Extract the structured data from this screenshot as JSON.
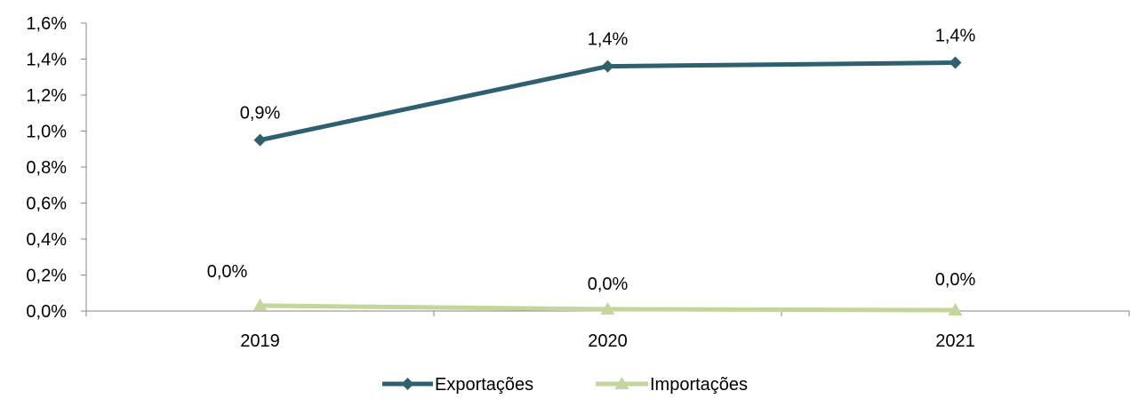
{
  "chart_data": {
    "type": "line",
    "categories": [
      "2019",
      "2020",
      "2021"
    ],
    "ylim": [
      0,
      1.6
    ],
    "yticks": [
      "0,0%",
      "0,2%",
      "0,4%",
      "0,6%",
      "0,8%",
      "1,0%",
      "1,2%",
      "1,4%",
      "1,6%"
    ],
    "ytick_values": [
      0,
      0.2,
      0.4,
      0.6,
      0.8,
      1.0,
      1.2,
      1.4,
      1.6
    ],
    "grid": false,
    "legend_position": "bottom",
    "series": [
      {
        "name": "Exportações",
        "values": [
          0.95,
          1.36,
          1.38
        ],
        "labels": [
          "0,9%",
          "1,4%",
          "1,4%"
        ],
        "color": "#2e6070",
        "marker": "diamond"
      },
      {
        "name": "Importações",
        "values": [
          0.03,
          0.01,
          0.005
        ],
        "labels": [
          "0,0%",
          "0,0%",
          "0,0%"
        ],
        "color": "#c3d69b",
        "marker": "triangle"
      }
    ]
  }
}
